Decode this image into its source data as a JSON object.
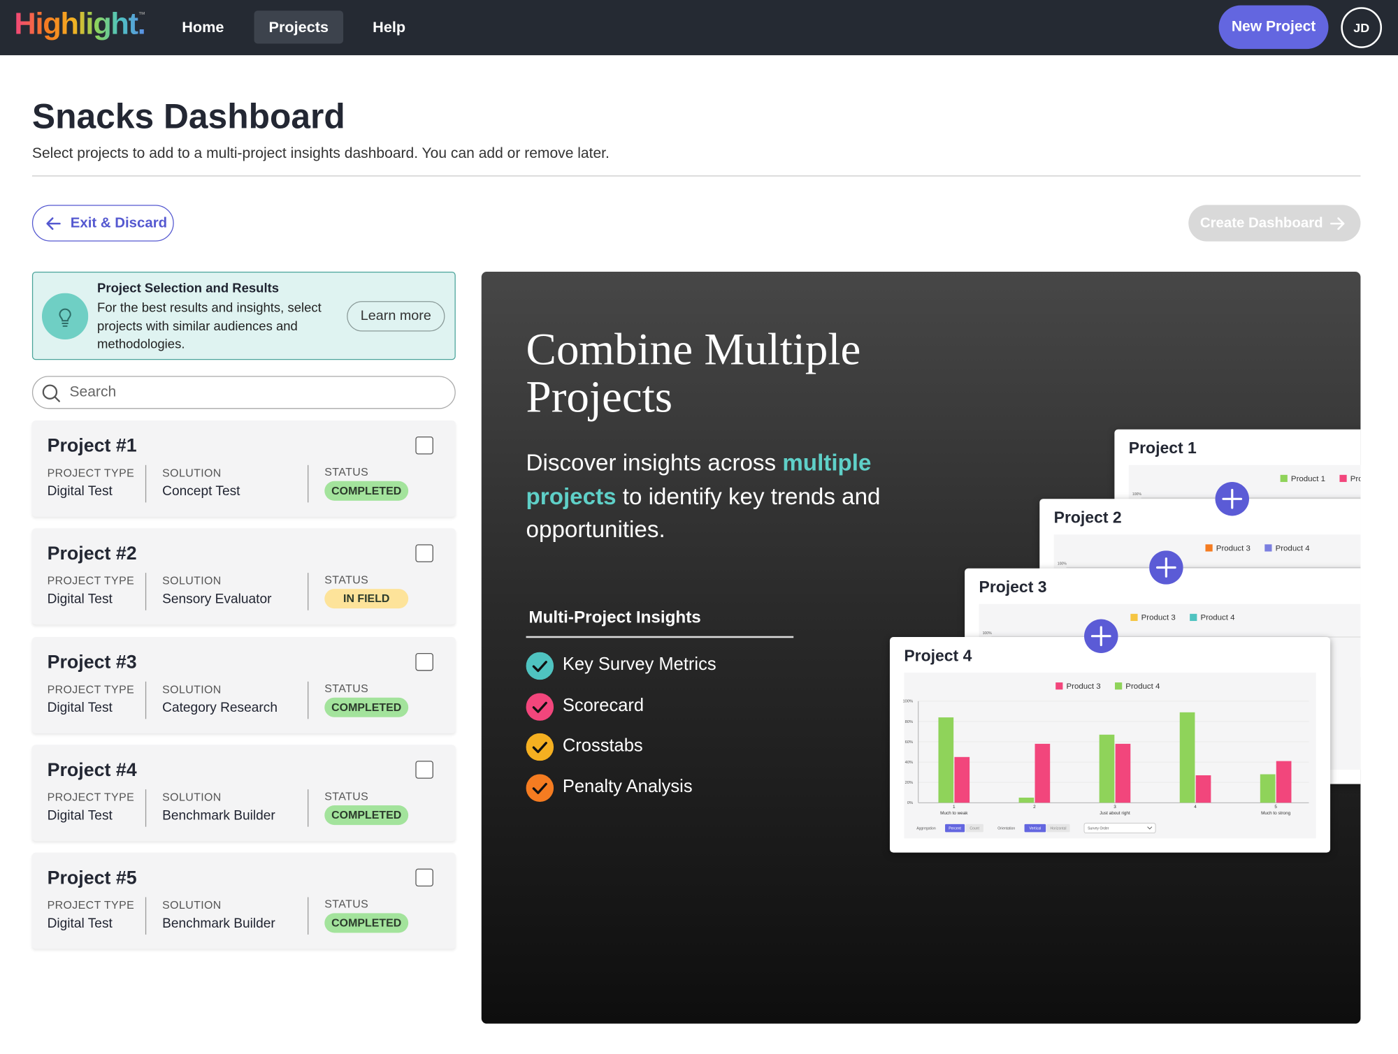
{
  "nav": {
    "logo": "Highlight.",
    "logo_mark": "™",
    "items": [
      "Home",
      "Projects",
      "Help"
    ],
    "new_project": "New Project",
    "avatar": "JD"
  },
  "header": {
    "title": "Snacks Dashboard",
    "subtitle": "Select projects to add to a multi-project insights dashboard. You can add or remove later."
  },
  "actions": {
    "exit": "Exit & Discard",
    "create": "Create Dashboard"
  },
  "tip": {
    "title": "Project Selection and Results",
    "text": "For the best results and insights, select projects with similar audiences and methodologies.",
    "button": "Learn more"
  },
  "search": {
    "placeholder": "Search"
  },
  "projects": [
    {
      "name": "Project #1",
      "type_label": "PROJECT TYPE",
      "type": "Digital Test",
      "solution_label": "SOLUTION",
      "solution": "Concept Test",
      "status_label": "STATUS",
      "status": "COMPLETED",
      "status_color": "#a3e39c"
    },
    {
      "name": "Project #2",
      "type_label": "PROJECT TYPE",
      "type": "Digital Test",
      "solution_label": "SOLUTION",
      "solution": "Sensory Evaluator",
      "status_label": "STATUS",
      "status": "IN FIELD",
      "status_color": "#fde39a"
    },
    {
      "name": "Project #3",
      "type_label": "PROJECT TYPE",
      "type": "Digital Test",
      "solution_label": "SOLUTION",
      "solution": "Category Research",
      "status_label": "STATUS",
      "status": "COMPLETED",
      "status_color": "#a3e39c"
    },
    {
      "name": "Project #4",
      "type_label": "PROJECT TYPE",
      "type": "Digital Test",
      "solution_label": "SOLUTION",
      "solution": "Benchmark Builder",
      "status_label": "STATUS",
      "status": "COMPLETED",
      "status_color": "#a3e39c"
    },
    {
      "name": "Project #5",
      "type_label": "PROJECT TYPE",
      "type": "Digital Test",
      "solution_label": "SOLUTION",
      "solution": "Benchmark Builder",
      "status_label": "STATUS",
      "status": "COMPLETED",
      "status_color": "#a3e39c"
    }
  ],
  "promo": {
    "title": "Combine Multiple Projects",
    "text_before": "Discover insights across",
    "text_highlight": "multiple projects",
    "text_after": "to identify key trends and opportunities.",
    "insights_title": "Multi-Project Insights",
    "insights": [
      {
        "label": "Key Survey Metrics",
        "color": "#4fc3c0"
      },
      {
        "label": "Scorecard",
        "color": "#f2467c"
      },
      {
        "label": "Crosstabs",
        "color": "#f5b021"
      },
      {
        "label": "Penalty Analysis",
        "color": "#f57c21"
      }
    ]
  },
  "preview": {
    "cards": [
      {
        "title": "Project 1",
        "legend": [
          {
            "name": "Product 1",
            "color": "#8fd35a"
          },
          {
            "name": "Pro",
            "color": "#f2467c"
          }
        ],
        "tick": "100%"
      },
      {
        "title": "Project 2",
        "legend": [
          {
            "name": "Product 3",
            "color": "#f57c21"
          },
          {
            "name": "Product 4",
            "color": "#7b7fe0"
          }
        ],
        "tick": "100%"
      },
      {
        "title": "Project 3",
        "legend": [
          {
            "name": "Product 3",
            "color": "#f5c542"
          },
          {
            "name": "Product 4",
            "color": "#4fc3c0"
          }
        ],
        "tick": "100%"
      },
      {
        "title": "Project 4",
        "chart": {
          "type": "bar",
          "categories": [
            "1",
            "2",
            "3",
            "4",
            "5"
          ],
          "sublabels": [
            "Much to weak",
            null,
            "Just about right",
            null,
            "Much to strong"
          ],
          "series": [
            {
              "name": "Product 3",
              "color": "#f2467c",
              "values": [
                45,
                58,
                58,
                27,
                41
              ]
            },
            {
              "name": "Product 4",
              "color": "#8fd35a",
              "values": [
                84,
                5,
                67,
                89,
                28
              ]
            }
          ],
          "ylim": [
            0,
            100
          ],
          "yticks": [
            {
              "value": 0,
              "label": "0%"
            },
            {
              "value": 20,
              "label": "20%"
            },
            {
              "value": 40,
              "label": "40%"
            },
            {
              "value": 60,
              "label": "60%"
            },
            {
              "value": 80,
              "label": "80%"
            },
            {
              "value": 100,
              "label": "100%"
            }
          ],
          "controls": {
            "aggregation": "Aggregation",
            "percent": "Percent",
            "count": "Count",
            "orientation": "Orientation",
            "vertical": "Vertical",
            "horizontal": "Horizontal",
            "order": "Survey Order"
          }
        }
      }
    ]
  }
}
